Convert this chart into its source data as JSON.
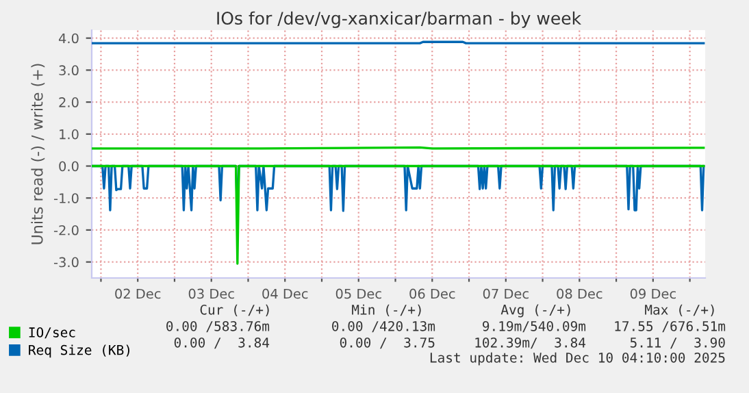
{
  "chart_data": {
    "type": "line",
    "title": "IOs for /dev/vg-xanxicar/barman - by week",
    "ylabel": "Units read (-) / write (+)",
    "xlim": [
      "2025-12-01T21:00",
      "2025-12-10T05:00"
    ],
    "xticks": [
      {
        "value": "2025-12-02T00:00",
        "label": null
      },
      {
        "value": "2025-12-02T12:00",
        "label": "02 Dec"
      },
      {
        "value": "2025-12-03T00:00",
        "label": null
      },
      {
        "value": "2025-12-03T12:00",
        "label": "03 Dec"
      },
      {
        "value": "2025-12-04T00:00",
        "label": null
      },
      {
        "value": "2025-12-04T12:00",
        "label": "04 Dec"
      },
      {
        "value": "2025-12-05T00:00",
        "label": null
      },
      {
        "value": "2025-12-05T12:00",
        "label": "05 Dec"
      },
      {
        "value": "2025-12-06T00:00",
        "label": null
      },
      {
        "value": "2025-12-06T12:00",
        "label": "06 Dec"
      },
      {
        "value": "2025-12-07T00:00",
        "label": null
      },
      {
        "value": "2025-12-07T12:00",
        "label": "07 Dec"
      },
      {
        "value": "2025-12-08T00:00",
        "label": null
      },
      {
        "value": "2025-12-08T12:00",
        "label": "08 Dec"
      },
      {
        "value": "2025-12-09T00:00",
        "label": null
      },
      {
        "value": "2025-12-09T12:00",
        "label": "09 Dec"
      },
      {
        "value": "2025-12-10T00:00",
        "label": null
      }
    ],
    "ylim": [
      -3.5,
      4.25
    ],
    "yticks": [
      {
        "value": -3,
        "label": "-3.0"
      },
      {
        "value": -2,
        "label": "-2.0"
      },
      {
        "value": -1,
        "label": "-1.0"
      },
      {
        "value": 0,
        "label": "0.0"
      },
      {
        "value": 1,
        "label": "1.0"
      },
      {
        "value": 2,
        "label": "2.0"
      },
      {
        "value": 3,
        "label": "3.0"
      },
      {
        "value": 4,
        "label": "4.0"
      }
    ],
    "grid": true,
    "legend": "bottom left",
    "marker": "none",
    "line_style": "solid",
    "ref_lines": [
      {
        "axis": "y",
        "value": 0,
        "color": "#000000",
        "line_style": "dotted"
      }
    ],
    "series": [
      {
        "name": "IO/sec",
        "color": "#00cc00",
        "x": [
          "2025-12-01T21:00",
          "2025-12-04T04:00",
          "2025-12-06T08:00",
          "2025-12-06T12:00",
          "2025-12-10T04:30"
        ],
        "values": [
          0.55,
          0.55,
          0.58,
          0.55,
          0.57
        ]
      },
      {
        "color": "#00cc00",
        "x": [
          "2025-12-01T21:00",
          "2025-12-03T20:00",
          "2025-12-03T20:30",
          "2025-12-03T21:00",
          "2025-12-10T04:30"
        ],
        "values": [
          0,
          0,
          -3.05,
          0,
          0
        ]
      },
      {
        "name": "Req Size (KB)",
        "color": "#0066b3",
        "x": [
          "2025-12-01T21:00",
          "2025-12-06T08:00",
          "2025-12-06T09:00",
          "2025-12-06T22:00",
          "2025-12-06T23:00",
          "2025-12-10T04:30"
        ],
        "values": [
          3.84,
          3.84,
          3.88,
          3.88,
          3.84,
          3.84
        ]
      },
      {
        "color": "#0066b3",
        "x": [
          "2025-12-01T21:00",
          "2025-12-02T00:30",
          "2025-12-02T01:00",
          "2025-12-02T01:30",
          "2025-12-02T02:30",
          "2025-12-02T03:00",
          "2025-12-02T03:30",
          "2025-12-02T04:30",
          "2025-12-02T05:00",
          "2025-12-02T05:30",
          "2025-12-02T06:30",
          "2025-12-02T07:00",
          "2025-12-02T09:00",
          "2025-12-02T09:30",
          "2025-12-02T10:00",
          "2025-12-02T13:30",
          "2025-12-02T14:00",
          "2025-12-02T15:00",
          "2025-12-02T15:30",
          "2025-12-03T02:30",
          "2025-12-03T03:00",
          "2025-12-03T03:30",
          "2025-12-03T04:00",
          "2025-12-03T04:30",
          "2025-12-03T05:30",
          "2025-12-03T06:00",
          "2025-12-03T06:30",
          "2025-12-03T07:00",
          "2025-12-03T14:30",
          "2025-12-03T15:00",
          "2025-12-03T15:30",
          "2025-12-03T20:00",
          "2025-12-03T20:30",
          "2025-12-03T21:00",
          "2025-12-04T02:30",
          "2025-12-04T03:00",
          "2025-12-04T03:30",
          "2025-12-04T04:30",
          "2025-12-04T05:00",
          "2025-12-04T06:00",
          "2025-12-04T06:30",
          "2025-12-04T08:00",
          "2025-12-04T08:30",
          "2025-12-05T02:30",
          "2025-12-05T03:00",
          "2025-12-05T03:30",
          "2025-12-05T04:30",
          "2025-12-05T05:00",
          "2025-12-05T05:30",
          "2025-12-05T06:30",
          "2025-12-05T07:00",
          "2025-12-05T07:30",
          "2025-12-06T03:00",
          "2025-12-06T03:30",
          "2025-12-06T04:00",
          "2025-12-06T05:30",
          "2025-12-06T07:00",
          "2025-12-06T07:30",
          "2025-12-06T08:00",
          "2025-12-06T08:30",
          "2025-12-07T03:00",
          "2025-12-07T03:30",
          "2025-12-07T04:00",
          "2025-12-07T04:30",
          "2025-12-07T05:00",
          "2025-12-07T05:30",
          "2025-12-07T06:00",
          "2025-12-07T09:30",
          "2025-12-07T10:00",
          "2025-12-07T10:30",
          "2025-12-07T23:00",
          "2025-12-07T23:30",
          "2025-12-08T00:00",
          "2025-12-08T03:00",
          "2025-12-08T03:30",
          "2025-12-08T04:00",
          "2025-12-08T05:00",
          "2025-12-08T05:30",
          "2025-12-08T06:00",
          "2025-12-08T07:00",
          "2025-12-08T07:30",
          "2025-12-08T08:00",
          "2025-12-08T09:30",
          "2025-12-08T10:00",
          "2025-12-08T10:30",
          "2025-12-09T03:30",
          "2025-12-09T04:00",
          "2025-12-09T04:30",
          "2025-12-09T05:30",
          "2025-12-09T06:00",
          "2025-12-09T06:30",
          "2025-12-09T07:00",
          "2025-12-09T07:30",
          "2025-12-09T08:00",
          "2025-12-10T03:30",
          "2025-12-10T04:00",
          "2025-12-10T04:30"
        ],
        "values": [
          0,
          0,
          -0.7,
          0,
          0,
          -1.38,
          0,
          0,
          -0.75,
          -0.72,
          -0.72,
          0,
          0,
          -0.7,
          0,
          0,
          -0.7,
          -0.7,
          0,
          0,
          -1.38,
          0,
          -0.7,
          0,
          -1.38,
          0,
          -0.7,
          0,
          0,
          -1.07,
          0,
          0,
          -1.6,
          0,
          0,
          -1.38,
          0,
          -0.7,
          0,
          -1.38,
          -0.7,
          -0.7,
          0,
          0,
          -1.38,
          0,
          0,
          -0.72,
          0,
          0,
          -1.4,
          0,
          0,
          -1.38,
          0,
          -0.7,
          -0.7,
          0,
          -0.7,
          0,
          0,
          -0.72,
          0,
          -0.7,
          0,
          -0.7,
          0,
          0,
          -0.7,
          0,
          0,
          -0.7,
          0,
          0,
          -1.38,
          0,
          0,
          -0.7,
          0,
          0,
          -0.72,
          0,
          0,
          -0.7,
          0,
          0,
          -1.35,
          0,
          0,
          -1.38,
          -1.38,
          0,
          -0.7,
          0,
          0,
          -1.38,
          0
        ]
      }
    ],
    "annotations": [
      "Cur (-/+)",
      "Min (-/+)",
      "Avg (-/+)",
      "Max (-/+)",
      "0.00 /583.76m",
      "0.00 /420.13m",
      "9.19m/540.09m",
      "17.55 /676.51m",
      "0.00 /  3.84",
      "0.00 /  3.75",
      "102.39m/  3.84",
      "5.11 /  3.90",
      "Last update: Wed Dec 10 04:10:00 2025"
    ]
  }
}
